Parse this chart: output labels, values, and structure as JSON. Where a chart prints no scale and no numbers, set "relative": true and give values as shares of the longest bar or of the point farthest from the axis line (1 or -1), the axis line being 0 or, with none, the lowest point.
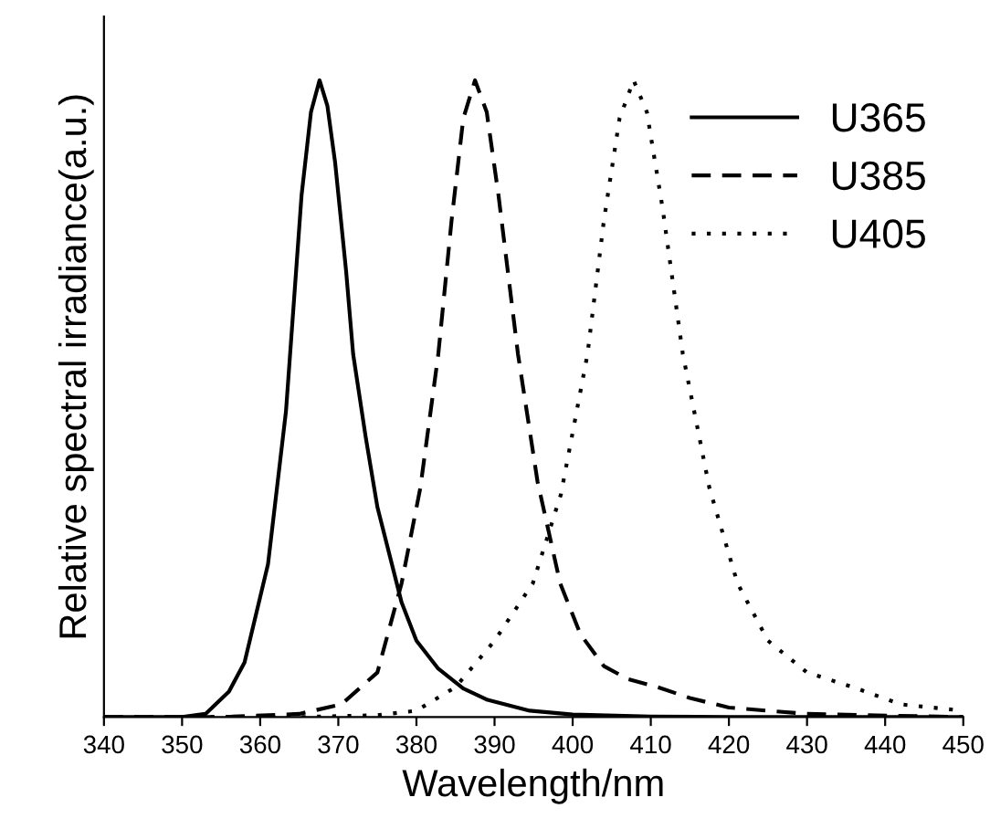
{
  "chart_data": {
    "type": "line",
    "relative": true,
    "xlabel": "Wavelength/nm",
    "ylabel": "Relative spectral irradiance(a.u.)",
    "xlim": [
      340,
      450
    ],
    "xticks": [
      340,
      350,
      360,
      370,
      380,
      390,
      400,
      410,
      420,
      430,
      440,
      450
    ],
    "legend": "top right",
    "grid": false,
    "series": [
      {
        "name": "U365",
        "color": "#000000",
        "line_style": "solid",
        "x": [
          340,
          350,
          353,
          356,
          358,
          361,
          363.3,
          365.3,
          366.5,
          367.6,
          368.6,
          369.6,
          371,
          371.9,
          373.5,
          375,
          378.1,
          380,
          382.8,
          386,
          389.1,
          394.5,
          400,
          410,
          420,
          450
        ],
        "values": [
          0,
          0,
          0.005,
          0.04,
          0.086,
          0.24,
          0.48,
          0.82,
          0.95,
          1,
          0.96,
          0.87,
          0.7,
          0.57,
          0.44,
          0.33,
          0.18,
          0.12,
          0.076,
          0.045,
          0.027,
          0.01,
          0.004,
          0.001,
          0,
          0
        ]
      },
      {
        "name": "U385",
        "color": "#000000",
        "line_style": "dashed",
        "x": [
          340,
          355,
          365,
          370.4,
          375,
          378.1,
          380.5,
          382.8,
          384.5,
          386,
          387.5,
          389,
          390.5,
          393,
          395.5,
          398.4,
          401,
          404,
          407,
          410.9,
          415,
          420,
          430,
          450
        ],
        "values": [
          0,
          0,
          0.005,
          0.02,
          0.07,
          0.21,
          0.36,
          0.57,
          0.78,
          0.94,
          1,
          0.95,
          0.82,
          0.57,
          0.37,
          0.21,
          0.13,
          0.08,
          0.06,
          0.047,
          0.03,
          0.015,
          0.005,
          0
        ]
      },
      {
        "name": "U405",
        "color": "#000000",
        "line_style": "dotted",
        "x": [
          340,
          365,
          375,
          380,
          385,
          390,
          394.9,
          398.5,
          401.9,
          404,
          406,
          407.8,
          409.5,
          411.5,
          414.1,
          417.5,
          421.1,
          425,
          430,
          435.9,
          442,
          450
        ],
        "values": [
          0,
          0,
          0.003,
          0.01,
          0.047,
          0.12,
          0.21,
          0.35,
          0.57,
          0.78,
          0.94,
          1,
          0.95,
          0.8,
          0.57,
          0.36,
          0.21,
          0.12,
          0.07,
          0.047,
          0.02,
          0.01
        ]
      }
    ]
  }
}
